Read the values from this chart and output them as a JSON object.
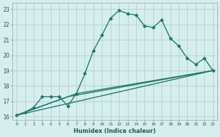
{
  "xlabel": "Humidex (Indice chaleur)",
  "bg_color": "#d6eeee",
  "grid_color": "#b0cece",
  "line_color": "#1a7a6a",
  "xlim": [
    -0.5,
    23.5
  ],
  "ylim": [
    15.8,
    23.4
  ],
  "xticks": [
    0,
    1,
    2,
    3,
    4,
    5,
    6,
    7,
    8,
    9,
    10,
    11,
    12,
    13,
    14,
    15,
    16,
    17,
    18,
    19,
    20,
    21,
    22,
    23
  ],
  "yticks": [
    16,
    17,
    18,
    19,
    20,
    21,
    22,
    23
  ],
  "series": [
    {
      "x": [
        0,
        1,
        2,
        3,
        4,
        5,
        6,
        7,
        8,
        9,
        10,
        11,
        12,
        13,
        14,
        15,
        16,
        17,
        18,
        19,
        20,
        21,
        22,
        23
      ],
      "y": [
        16.1,
        16.3,
        16.6,
        17.3,
        17.3,
        17.3,
        16.7,
        17.5,
        18.8,
        20.3,
        21.3,
        22.4,
        22.9,
        22.7,
        22.6,
        21.9,
        21.8,
        22.3,
        21.1,
        20.6,
        19.8,
        19.4,
        19.8,
        19.0
      ],
      "marker": "D",
      "markersize": 2.5,
      "linewidth": 1.0
    },
    {
      "x": [
        0,
        23
      ],
      "y": [
        16.1,
        19.0
      ],
      "marker": null,
      "linewidth": 1.0
    },
    {
      "x": [
        0,
        6,
        23
      ],
      "y": [
        16.1,
        17.3,
        19.0
      ],
      "marker": null,
      "linewidth": 1.0
    },
    {
      "x": [
        0,
        7,
        23
      ],
      "y": [
        16.1,
        17.5,
        19.0
      ],
      "marker": null,
      "linewidth": 1.0
    }
  ]
}
